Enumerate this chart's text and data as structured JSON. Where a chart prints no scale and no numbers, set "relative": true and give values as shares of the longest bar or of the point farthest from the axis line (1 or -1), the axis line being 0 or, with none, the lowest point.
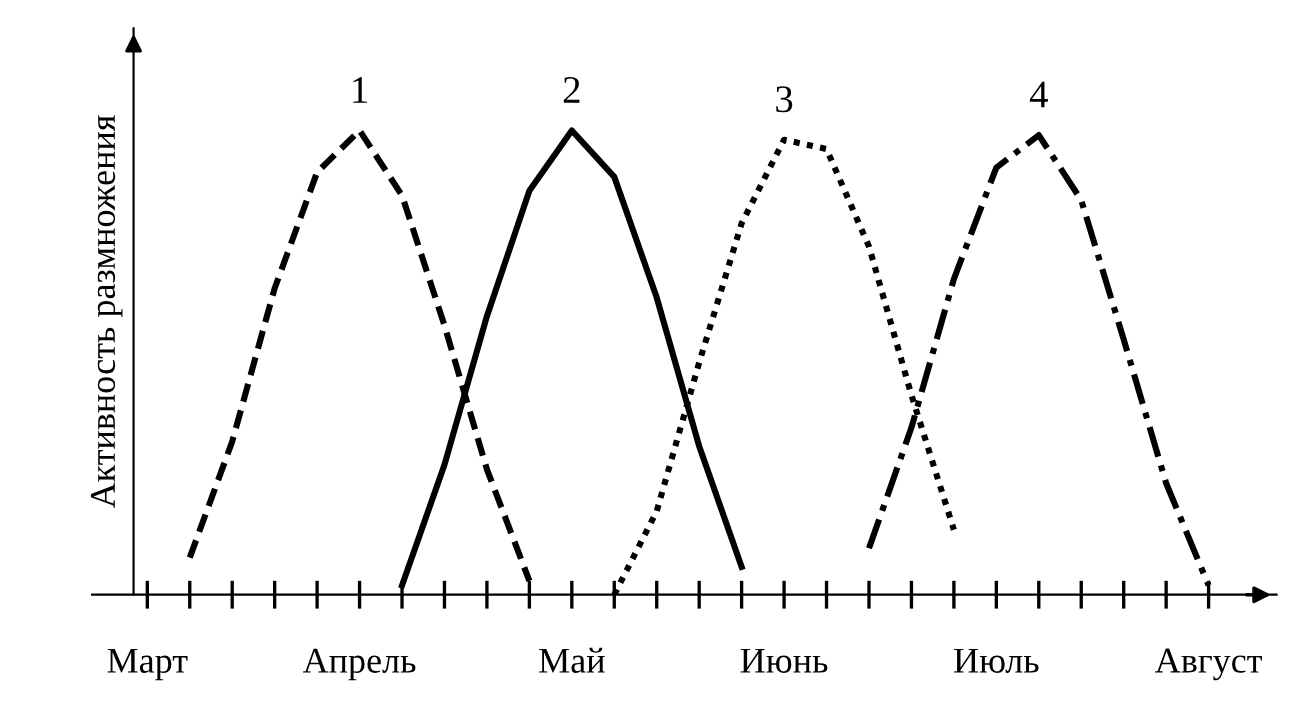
{
  "chart_data": {
    "type": "line",
    "relative": true,
    "ylabel": "Активность размножения",
    "categories": [
      "Март",
      null,
      null,
      null,
      null,
      "Апрель",
      null,
      null,
      null,
      null,
      "Май",
      null,
      null,
      null,
      null,
      "Июнь",
      null,
      null,
      null,
      null,
      "Июль",
      null,
      null,
      null,
      null,
      "Август"
    ],
    "grid": false,
    "legend": false,
    "marker": "none",
    "series": [
      {
        "name": "1",
        "color": "#000000",
        "line_style": "dashed",
        "values": [
          null,
          0.08,
          0.33,
          0.66,
          0.91,
          1.0,
          0.86,
          0.58,
          0.27,
          0.03,
          null,
          null,
          null,
          null,
          null,
          null,
          null,
          null,
          null,
          null,
          null,
          null,
          null,
          null,
          null,
          null
        ]
      },
      {
        "name": "2",
        "color": "#000000",
        "line_style": "solid",
        "values": [
          null,
          null,
          null,
          null,
          null,
          null,
          0.02,
          0.28,
          0.6,
          0.87,
          1.0,
          0.9,
          0.64,
          0.32,
          0.06,
          null,
          null,
          null,
          null,
          null,
          null,
          null,
          null,
          null,
          null,
          null
        ]
      },
      {
        "name": "3",
        "color": "#000000",
        "line_style": "dotted",
        "values": [
          null,
          null,
          null,
          null,
          null,
          null,
          null,
          null,
          null,
          null,
          null,
          0,
          0.18,
          0.5,
          0.8,
          0.98,
          0.96,
          0.75,
          0.43,
          0.14,
          null,
          null,
          null,
          null,
          null,
          null
        ]
      },
      {
        "name": "4",
        "color": "#000000",
        "line_style": "dashdot",
        "values": [
          null,
          null,
          null,
          null,
          null,
          null,
          null,
          null,
          null,
          null,
          null,
          null,
          null,
          null,
          null,
          null,
          null,
          0.1,
          0.36,
          0.68,
          0.92,
          0.99,
          0.85,
          0.55,
          0.24,
          0.02
        ]
      }
    ]
  }
}
